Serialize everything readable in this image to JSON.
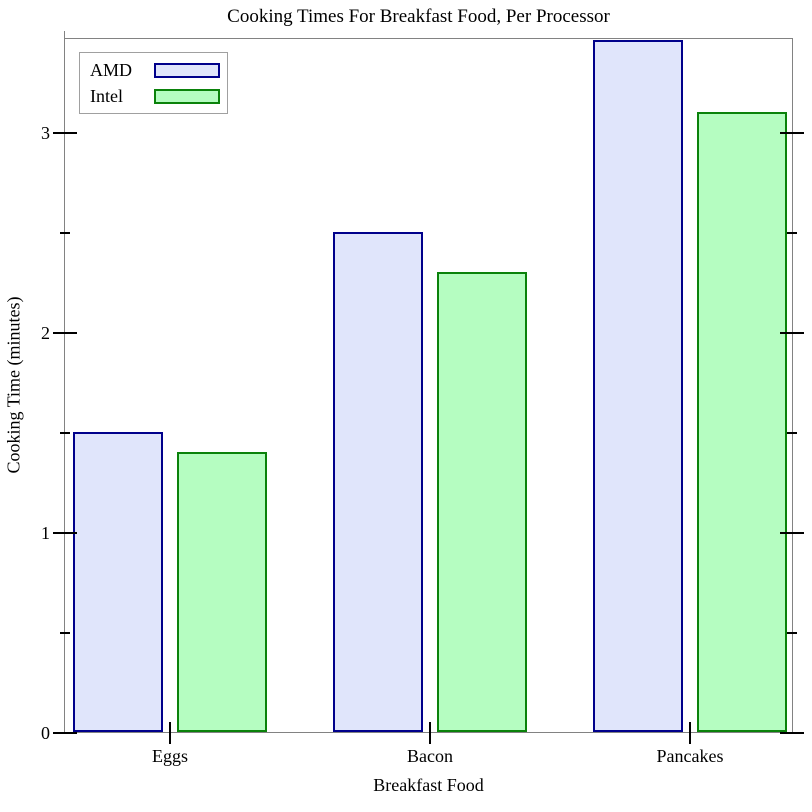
{
  "chart_data": {
    "type": "bar",
    "title": "Cooking Times For Breakfast Food, Per Processor",
    "xlabel": "Breakfast Food",
    "ylabel": "Cooking Time (minutes)",
    "categories": [
      "Eggs",
      "Bacon",
      "Pancakes"
    ],
    "series": [
      {
        "name": "AMD",
        "values": [
          1.5,
          2.5,
          3.5
        ],
        "fill": "#e0e5fb",
        "border": "#00008b"
      },
      {
        "name": "Intel",
        "values": [
          1.4,
          2.3,
          3.1
        ],
        "fill": "#b5fdc1",
        "border": "#0a820a"
      }
    ],
    "ylim": [
      0,
      3.475
    ],
    "y_major_ticks": [
      0,
      1,
      2,
      3
    ],
    "y_minor_ticks": [
      0.5,
      1.5,
      2.5
    ],
    "y_tick_labels": [
      "0",
      "1",
      "2",
      "3"
    ],
    "legend_position": "top-left",
    "grid": false,
    "colors": {
      "axis_border": "#828282",
      "tick": "#000000",
      "text": "#000000",
      "legend_border": "#a0a0a0",
      "background": "#ffffff"
    }
  }
}
